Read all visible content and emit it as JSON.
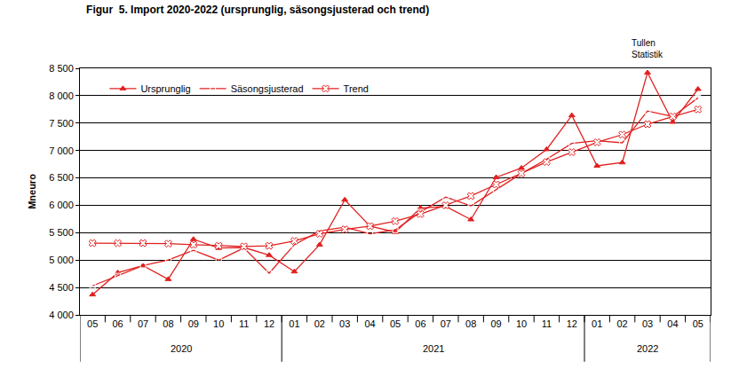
{
  "chart_data": {
    "type": "line",
    "title": "Figur  5. Import 2020-2022 (ursprunglig, säsongsjusterad och trend)",
    "y_label": "Mneuro",
    "source": [
      "Tullen",
      "Statistik"
    ],
    "categories": [
      "05",
      "06",
      "07",
      "08",
      "09",
      "10",
      "11",
      "12",
      "01",
      "02",
      "03",
      "04",
      "05",
      "06",
      "07",
      "08",
      "09",
      "10",
      "11",
      "12",
      "01",
      "02",
      "03",
      "04",
      "05"
    ],
    "x_groups": [
      {
        "label": "2020",
        "count": 8
      },
      {
        "label": "2021",
        "count": 12
      },
      {
        "label": "2022",
        "count": 5
      }
    ],
    "series": [
      {
        "name": "Ursprunglig",
        "color": "#e0201f",
        "marker": "triangle-up",
        "line_style": "solid",
        "values": [
          4370,
          4770,
          4900,
          4650,
          5380,
          5220,
          5230,
          5090,
          4790,
          5280,
          6100,
          5620,
          5510,
          5950,
          5980,
          5740,
          6510,
          6680,
          7020,
          7640,
          6720,
          6780,
          8420,
          7520,
          8120
        ]
      },
      {
        "name": "Säsongsjusterad",
        "color": "#e0201f",
        "marker": "square-open",
        "line_style": "solid",
        "values": [
          4530,
          4710,
          4900,
          5000,
          5180,
          5000,
          5220,
          4760,
          5280,
          5530,
          5600,
          5480,
          5550,
          5880,
          6150,
          5990,
          6290,
          6580,
          6840,
          7130,
          7180,
          7140,
          7720,
          7620,
          7960
        ]
      },
      {
        "name": "Trend",
        "color": "#e0201f",
        "marker": "x",
        "line_style": "solid",
        "values": [
          5310,
          5310,
          5310,
          5300,
          5280,
          5260,
          5250,
          5260,
          5350,
          5480,
          5560,
          5620,
          5710,
          5840,
          6000,
          6170,
          6380,
          6580,
          6790,
          6970,
          7150,
          7290,
          7480,
          7620,
          7750
        ]
      }
    ],
    "ylim": [
      4000,
      8500
    ],
    "yticks": [
      {
        "value": 4000,
        "label": "4 000"
      },
      {
        "value": 4500,
        "label": "4 500"
      },
      {
        "value": 5000,
        "label": "5 000"
      },
      {
        "value": 5500,
        "label": "5 500"
      },
      {
        "value": 6000,
        "label": "6 000"
      },
      {
        "value": 6500,
        "label": "6 500"
      },
      {
        "value": 7000,
        "label": "7 000"
      },
      {
        "value": 7500,
        "label": "7 500"
      },
      {
        "value": 8000,
        "label": "8 000"
      },
      {
        "value": 8500,
        "label": "8 500"
      }
    ],
    "grid": true,
    "legend": "top left"
  }
}
